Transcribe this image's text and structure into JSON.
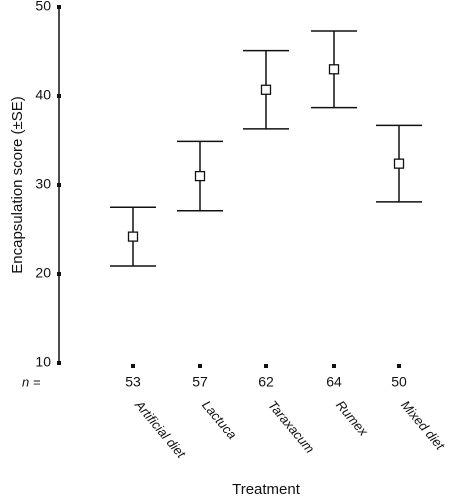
{
  "chart_data": {
    "type": "errorbar",
    "ylabel": "Encapsulation score (±SE)",
    "xlabel": "Treatment",
    "categories": [
      "Artificial diet",
      "Lactuca",
      "Taraxacum",
      "Rumex",
      "Mixed diet"
    ],
    "values": [
      24.2,
      31,
      40.7,
      43,
      32.4
    ],
    "errors": [
      3.3,
      3.9,
      4.4,
      4.3,
      4.3
    ],
    "n_label": "n =",
    "n": [
      53,
      57,
      62,
      64,
      50
    ],
    "ylim": [
      10,
      50
    ],
    "yticks": [
      10,
      20,
      30,
      40,
      50
    ],
    "color": "#111111"
  }
}
